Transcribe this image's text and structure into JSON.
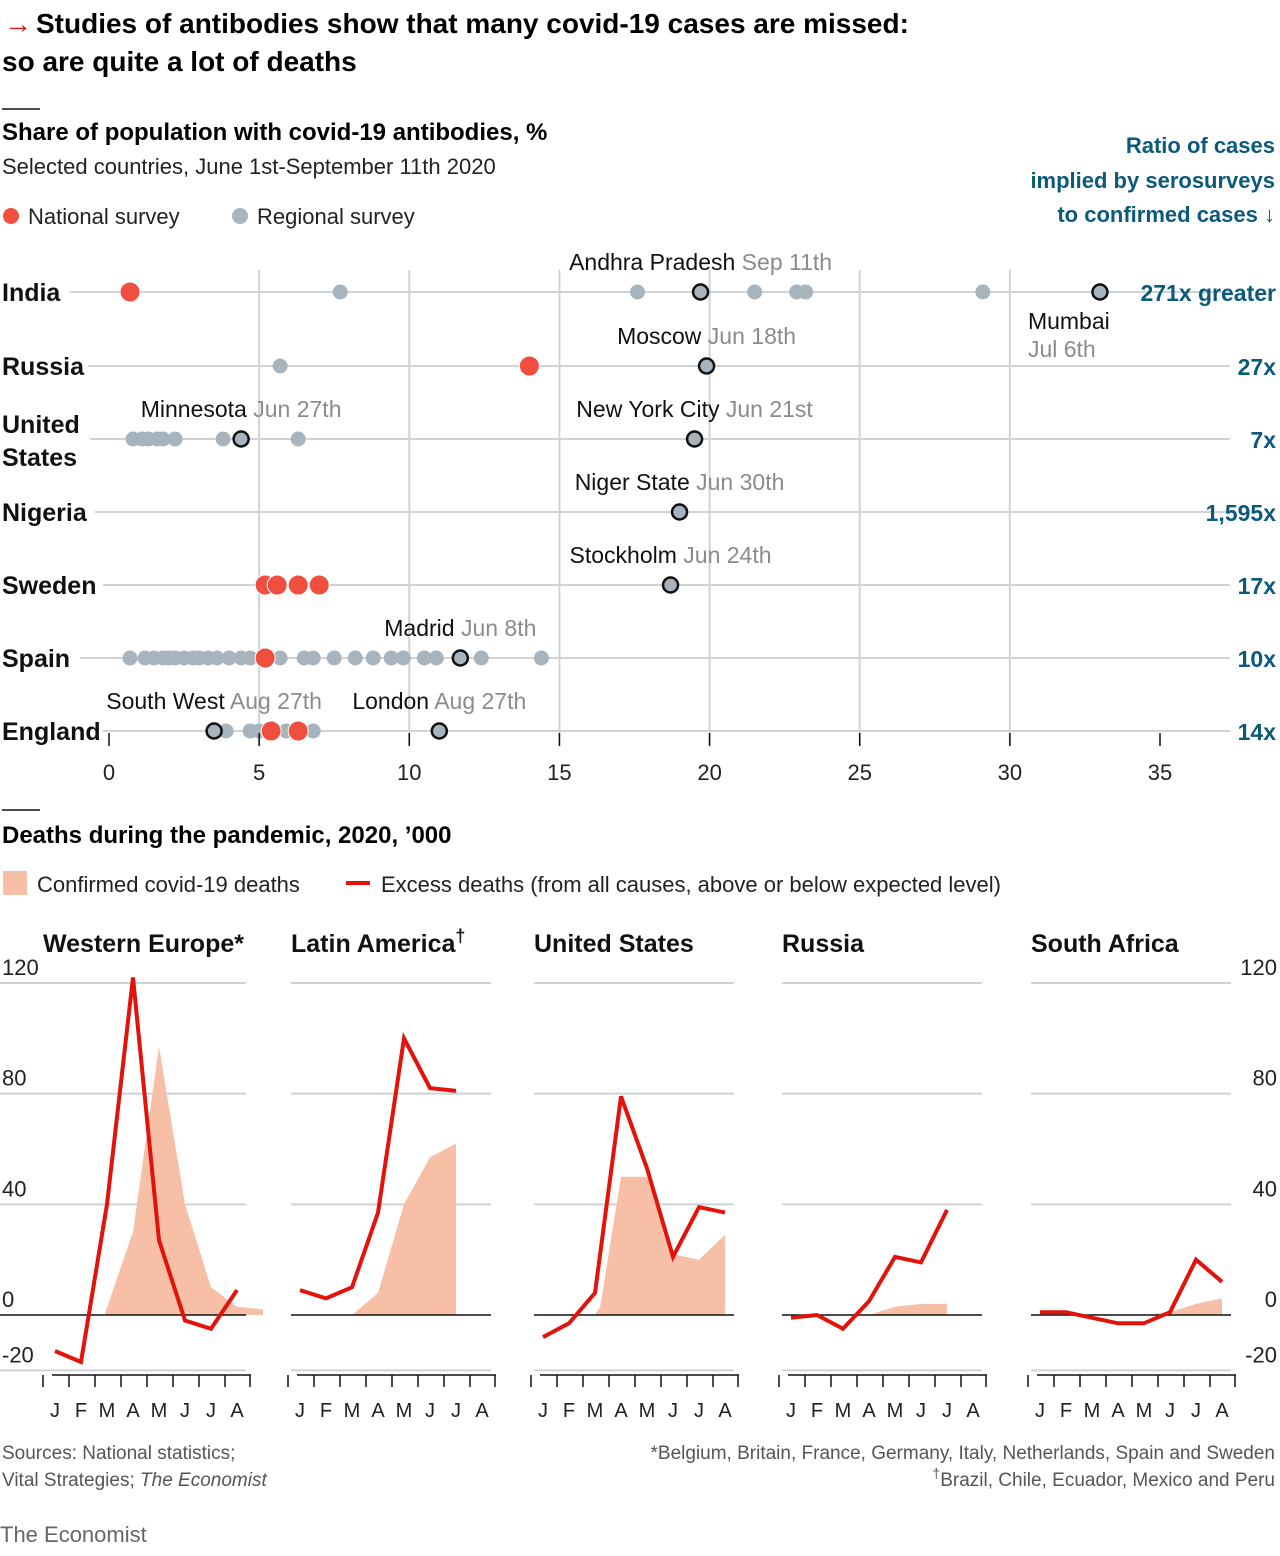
{
  "header": {
    "title_arrow": "→",
    "title_line1": "Studies of antibodies show that many covid-19 cases are missed:",
    "title_line2": "so are quite a lot of deaths"
  },
  "colors": {
    "red": "#e3120b",
    "national": "#f04e3e",
    "regional": "#a8b4bd",
    "teal": "#0b5a7c",
    "grid": "#cdd3d6",
    "area": "#f8bfa7",
    "grey_text": "#8b8b8b"
  },
  "chart_data": [
    {
      "type": "scatter",
      "title": "Share of population with covid-19 antibodies, %",
      "subtitle": "Selected countries, June 1st-September 11th 2020",
      "legend": [
        {
          "name": "National survey",
          "color": "#f04e3e"
        },
        {
          "name": "Regional survey",
          "color": "#a8b4bd"
        }
      ],
      "ratio_header": [
        "Ratio of cases",
        "implied by serosurveys",
        "to confirmed cases ↓"
      ],
      "xlim": [
        0,
        35
      ],
      "xticks": [
        "0",
        "5",
        "10",
        "15",
        "20",
        "25",
        "30",
        "35"
      ],
      "xtick_values": [
        0,
        5,
        10,
        15,
        20,
        25,
        30,
        35
      ],
      "rows": [
        {
          "country": [
            "India"
          ],
          "ratio": "271x greater",
          "national": [
            0.7
          ],
          "regional": [
            7.7,
            17.6,
            21.5,
            22.9,
            23.2,
            29.1
          ],
          "highlight": [
            {
              "value": 19.7,
              "label": "Andhra Pradesh",
              "date": "Sep 11th",
              "pos": "above"
            },
            {
              "value": 33.0,
              "label": "Mumbai",
              "date": "Jul 6th",
              "pos": "below"
            }
          ]
        },
        {
          "country": [
            "Russia"
          ],
          "ratio": "27x",
          "national": [
            14.0
          ],
          "regional": [
            5.7
          ],
          "highlight": [
            {
              "value": 19.9,
              "label": "Moscow",
              "date": "Jun 18th",
              "pos": "above"
            }
          ]
        },
        {
          "country": [
            "United",
            "States"
          ],
          "ratio": "7x",
          "national": [],
          "regional": [
            0.8,
            1.1,
            1.3,
            1.6,
            1.8,
            2.2,
            3.8,
            6.3
          ],
          "highlight": [
            {
              "value": 4.4,
              "label": "Minnesota",
              "date": "Jun 27th",
              "pos": "above"
            },
            {
              "value": 19.5,
              "label": "New York City",
              "date": "Jun 21st",
              "pos": "above"
            }
          ]
        },
        {
          "country": [
            "Nigeria"
          ],
          "ratio": "1,595x",
          "national": [],
          "regional": [],
          "highlight": [
            {
              "value": 19.0,
              "label": "Niger State",
              "date": "Jun 30th",
              "pos": "above"
            }
          ]
        },
        {
          "country": [
            "Sweden"
          ],
          "ratio": "17x",
          "national": [
            5.2,
            5.6,
            6.3,
            7.0
          ],
          "regional": [],
          "highlight": [
            {
              "value": 18.7,
              "label": "Stockholm",
              "date": "Jun 24th",
              "pos": "above"
            }
          ]
        },
        {
          "country": [
            "Spain"
          ],
          "ratio": "10x",
          "national": [
            5.2
          ],
          "regional": [
            0.7,
            1.2,
            1.5,
            1.8,
            2.0,
            2.2,
            2.5,
            2.8,
            3.0,
            3.3,
            3.6,
            4.0,
            4.4,
            4.7,
            5.7,
            6.5,
            6.8,
            7.5,
            8.2,
            8.8,
            9.4,
            9.8,
            10.5,
            10.9,
            12.4,
            14.4
          ],
          "highlight": [
            {
              "value": 11.7,
              "label": "Madrid",
              "date": "Jun 8th",
              "pos": "above"
            }
          ]
        },
        {
          "country": [
            "England"
          ],
          "ratio": "14x",
          "national": [
            5.4,
            6.3
          ],
          "regional": [
            3.9,
            4.7,
            5.0,
            5.9,
            6.8
          ],
          "highlight": [
            {
              "value": 3.5,
              "label": "South West",
              "date": "Aug 27th",
              "pos": "above"
            },
            {
              "value": 11.0,
              "label": "London",
              "date": "Aug 27th",
              "pos": "above"
            }
          ]
        }
      ]
    },
    {
      "type": "area",
      "title": "Deaths during the pandemic, 2020, ’000",
      "legend": [
        {
          "name": "Confirmed covid-19 deaths",
          "type": "area",
          "color": "#f8bfa7"
        },
        {
          "name": "Excess deaths (from all causes, above or below expected level)",
          "type": "line",
          "color": "#e3120b"
        }
      ],
      "ylim": [
        -20,
        120
      ],
      "yticks": [
        -20,
        0,
        40,
        80,
        120
      ],
      "ytick_labels": [
        "-20",
        "0",
        "40",
        "80",
        "120"
      ],
      "months": [
        "J",
        "F",
        "M",
        "A",
        "M",
        "J",
        "J",
        "A"
      ],
      "panels": [
        {
          "name": "Western Europe",
          "mark": "*",
          "confirmed": [
            [
              1.9,
              0
            ],
            [
              3,
              30
            ],
            [
              4,
              97
            ],
            [
              5,
              40
            ],
            [
              6,
              10
            ],
            [
              7,
              3
            ],
            [
              8,
              2
            ]
          ],
          "excess": [
            [
              0,
              -13
            ],
            [
              1,
              -17
            ],
            [
              2,
              40
            ],
            [
              3,
              122
            ],
            [
              4,
              27
            ],
            [
              5,
              -2
            ],
            [
              6,
              -5
            ],
            [
              7,
              9
            ]
          ]
        },
        {
          "name": "Latin America",
          "mark": "†",
          "confirmed": [
            [
              2,
              0
            ],
            [
              3,
              8
            ],
            [
              4,
              40
            ],
            [
              5,
              57
            ],
            [
              6,
              62
            ]
          ],
          "excess": [
            [
              0,
              9
            ],
            [
              1,
              6
            ],
            [
              2,
              10
            ],
            [
              3,
              37
            ],
            [
              4,
              100
            ],
            [
              5,
              82
            ],
            [
              6,
              81
            ]
          ]
        },
        {
          "name": "United States",
          "mark": "",
          "confirmed": [
            [
              2,
              0
            ],
            [
              2.2,
              3
            ],
            [
              3,
              50
            ],
            [
              4,
              50
            ],
            [
              5,
              22
            ],
            [
              6,
              20
            ],
            [
              7,
              29
            ]
          ],
          "excess": [
            [
              0,
              -8
            ],
            [
              1,
              -3
            ],
            [
              2,
              8
            ],
            [
              3,
              79
            ],
            [
              4,
              53
            ],
            [
              5,
              21
            ],
            [
              6,
              39
            ],
            [
              7,
              37
            ]
          ]
        },
        {
          "name": "Russia",
          "mark": "",
          "confirmed": [
            [
              3,
              0
            ],
            [
              4,
              3
            ],
            [
              5,
              4
            ],
            [
              6,
              4
            ]
          ],
          "excess": [
            [
              0,
              -1
            ],
            [
              1,
              0
            ],
            [
              2,
              -5
            ],
            [
              3,
              5
            ],
            [
              4,
              21
            ],
            [
              5,
              19
            ],
            [
              6,
              38
            ]
          ]
        },
        {
          "name": "South Africa",
          "mark": "",
          "confirmed": [
            [
              4,
              0
            ],
            [
              5,
              1
            ],
            [
              6,
              4
            ],
            [
              7,
              6
            ]
          ],
          "excess": [
            [
              0,
              1
            ],
            [
              1,
              1
            ],
            [
              2,
              -1
            ],
            [
              3,
              -3
            ],
            [
              4,
              -3
            ],
            [
              5,
              1
            ],
            [
              6,
              20
            ],
            [
              7,
              12
            ]
          ]
        }
      ]
    }
  ],
  "footer": {
    "sources_line1": "Sources: National statistics;",
    "sources_line2_prefix": "Vital Strategies; ",
    "sources_line2_italic": "The Economist",
    "note1": "*Belgium, Britain, France, Germany, Italy, Netherlands, Spain and Sweden",
    "note2_mark": "†",
    "note2": "Brazil, Chile, Ecuador, Mexico and Peru",
    "brand": "The Economist"
  }
}
